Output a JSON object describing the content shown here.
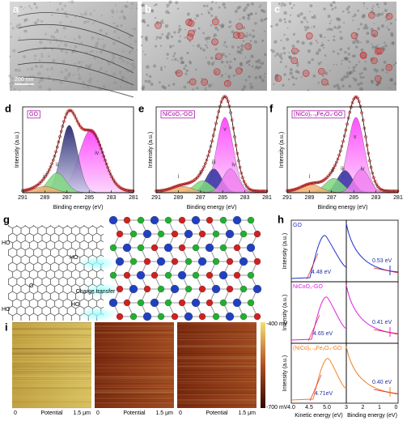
{
  "panels": {
    "a": {
      "label": "a",
      "scale_bar": "200 nm"
    },
    "b": {
      "label": "b"
    },
    "c": {
      "label": "c"
    },
    "d": {
      "label": "d",
      "legend": "GO",
      "peaks": [
        "i",
        "ii",
        "iii",
        "iv"
      ],
      "xlabel": "Binding energy (eV)",
      "ylabel": "Intensity (a.u.)",
      "xticks": [
        "291",
        "289",
        "287",
        "285",
        "283",
        "281"
      ]
    },
    "e": {
      "label": "e",
      "legend": "NiCoO₂-GO",
      "peaks": [
        "i",
        "ii",
        "iii",
        "iv",
        "v"
      ],
      "xlabel": "Binding energy (eV)",
      "ylabel": "Intensity (a.u.)",
      "xticks": [
        "291",
        "289",
        "287",
        "285",
        "283",
        "281"
      ]
    },
    "f": {
      "label": "f",
      "legend": "(NiCo)₁₋ᵧFeᵧO₄-GO",
      "peaks": [
        "i",
        "ii",
        "iii",
        "iv",
        "v"
      ],
      "xlabel": "Binding energy (eV)",
      "ylabel": "Intensity (a.u.)",
      "xticks": [
        "291",
        "289",
        "287",
        "285",
        "283",
        "281"
      ]
    },
    "g": {
      "label": "g",
      "groups": [
        "HO",
        "O",
        "HO",
        "HO",
        "HO"
      ],
      "charge_transfer": "Charge transfer"
    },
    "h": {
      "label": "h",
      "rows": [
        {
          "name": "GO",
          "cutoff": "4.48 eV",
          "vbm": "0.53 eV"
        },
        {
          "name": "NiCoO₂-GO",
          "cutoff": "4.65 eV",
          "vbm": "0.41 eV"
        },
        {
          "name": "(NiCo)₁₋ᵧFeᵧO₄-GO",
          "cutoff": "4.71eV",
          "vbm": "0.40 eV"
        }
      ],
      "ylabel": "Intensity (a.u.)",
      "ke_ticks": [
        "4.0",
        "4.5",
        "5.0"
      ],
      "be_ticks": [
        "3",
        "2",
        "1",
        "0"
      ],
      "ke_label": "Kinetic energy (eV)",
      "be_label": "Binding energy (eV)"
    },
    "i": {
      "label": "i",
      "colorbar_top": "-400 mV",
      "colorbar_bottom": "-700 mV",
      "axis": [
        "0",
        "Potential",
        "1.5 μm"
      ]
    }
  }
}
